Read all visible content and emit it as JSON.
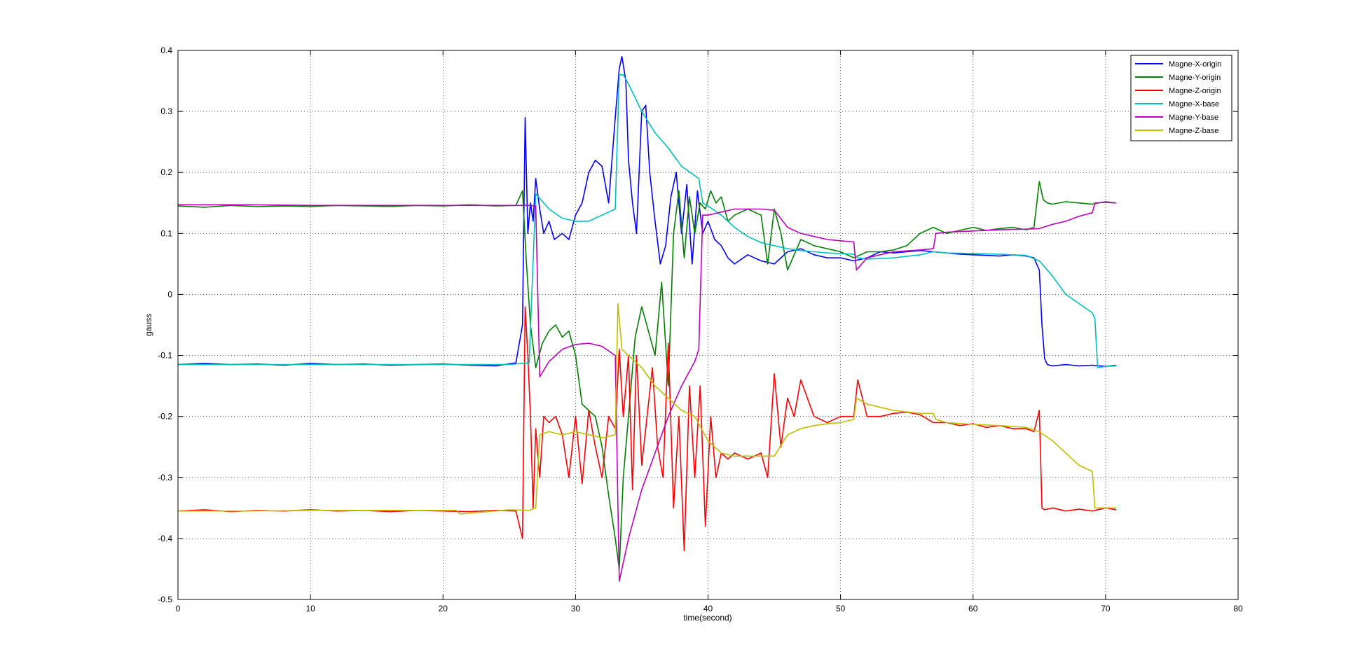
{
  "chart_data": {
    "type": "line",
    "title": "",
    "xlabel": "time(second)",
    "ylabel": "gauss",
    "xlim": [
      0,
      80
    ],
    "ylim": [
      -0.5,
      0.4
    ],
    "xticks": [
      0,
      10,
      20,
      30,
      40,
      50,
      60,
      70,
      80
    ],
    "xtick_labels": [
      "0",
      "10",
      "20",
      "30",
      "40",
      "50",
      "60",
      "70",
      "80"
    ],
    "yticks": [
      -0.5,
      -0.4,
      -0.3,
      -0.2,
      -0.1,
      0,
      0.1,
      0.2,
      0.3,
      0.4
    ],
    "ytick_labels": [
      "-0.5",
      "-0.4",
      "-0.3",
      "-0.2",
      "-0.1",
      "0",
      "0.1",
      "0.2",
      "0.3",
      "0.4"
    ],
    "grid": true,
    "legend_position": "top-right",
    "series": [
      {
        "name": "Magne-X-origin",
        "color": "#0000ff",
        "x": [
          0,
          2,
          4,
          6,
          8,
          10,
          12,
          14,
          16,
          18,
          20,
          22,
          24,
          25.5,
          26,
          26.2,
          26.4,
          26.6,
          26.8,
          27,
          27.3,
          27.6,
          28,
          28.4,
          29,
          29.5,
          30,
          30.5,
          31,
          31.5,
          32,
          32.5,
          33,
          33.3,
          33.5,
          33.8,
          34,
          34.3,
          34.6,
          35,
          35.3,
          35.6,
          36,
          36.4,
          36.8,
          37.2,
          37.6,
          38,
          38.4,
          38.8,
          39.2,
          39.6,
          40,
          40.5,
          41,
          41.5,
          42,
          43,
          44,
          45,
          46,
          47,
          48,
          49,
          50,
          51,
          52,
          53,
          54,
          55,
          56,
          57,
          58,
          59,
          60,
          61,
          62,
          63,
          64,
          64.6,
          65,
          65.2,
          65.4,
          65.6,
          66,
          67,
          68,
          69,
          70,
          70.8
        ],
        "values": [
          -0.115,
          -0.113,
          -0.115,
          -0.114,
          -0.116,
          -0.113,
          -0.115,
          -0.114,
          -0.116,
          -0.115,
          -0.114,
          -0.116,
          -0.117,
          -0.112,
          -0.05,
          0.29,
          0.1,
          0.15,
          0.12,
          0.19,
          0.14,
          0.1,
          0.12,
          0.09,
          0.1,
          0.09,
          0.13,
          0.15,
          0.2,
          0.22,
          0.21,
          0.15,
          0.29,
          0.37,
          0.39,
          0.35,
          0.22,
          0.15,
          0.1,
          0.3,
          0.31,
          0.2,
          0.12,
          0.05,
          0.08,
          0.16,
          0.2,
          0.1,
          0.18,
          0.05,
          0.17,
          0.1,
          0.12,
          0.09,
          0.08,
          0.06,
          0.05,
          0.065,
          0.055,
          0.05,
          0.07,
          0.075,
          0.065,
          0.06,
          0.06,
          0.055,
          0.06,
          0.07,
          0.068,
          0.07,
          0.072,
          0.07,
          0.068,
          0.066,
          0.065,
          0.064,
          0.063,
          0.065,
          0.063,
          0.06,
          0.04,
          -0.05,
          -0.105,
          -0.115,
          -0.117,
          -0.115,
          -0.117,
          -0.116,
          -0.118,
          -0.116
        ]
      },
      {
        "name": "Magne-Y-origin",
        "color": "#008000",
        "x": [
          0,
          2,
          4,
          6,
          8,
          10,
          12,
          14,
          16,
          18,
          20,
          22,
          24,
          25.5,
          26,
          26.3,
          26.6,
          27,
          27.5,
          28,
          28.5,
          29,
          29.5,
          30,
          30.5,
          31,
          31.5,
          32,
          32.5,
          33,
          33.3,
          33.6,
          34,
          34.5,
          35,
          35.5,
          36,
          36.5,
          37,
          37.4,
          37.8,
          38.2,
          38.6,
          39,
          39.4,
          39.8,
          40.2,
          40.6,
          41,
          41.5,
          42,
          43,
          44,
          44.5,
          45,
          45.5,
          46,
          47,
          48,
          49,
          50,
          51,
          52,
          53,
          54,
          55,
          56,
          57,
          58,
          59,
          60,
          61,
          62,
          63,
          64,
          64.6,
          65,
          65.3,
          65.6,
          66,
          67,
          68,
          69,
          70,
          70.8
        ],
        "values": [
          0.145,
          0.143,
          0.146,
          0.144,
          0.145,
          0.144,
          0.146,
          0.145,
          0.144,
          0.146,
          0.145,
          0.147,
          0.145,
          0.146,
          0.17,
          0.05,
          -0.05,
          -0.12,
          -0.08,
          -0.06,
          -0.05,
          -0.07,
          -0.06,
          -0.1,
          -0.18,
          -0.19,
          -0.2,
          -0.25,
          -0.33,
          -0.4,
          -0.45,
          -0.3,
          -0.2,
          -0.07,
          -0.02,
          -0.06,
          -0.1,
          0.02,
          -0.15,
          0.1,
          0.17,
          0.06,
          0.16,
          0.1,
          0.15,
          0.14,
          0.17,
          0.15,
          0.16,
          0.12,
          0.13,
          0.14,
          0.13,
          0.05,
          0.14,
          0.1,
          0.04,
          0.09,
          0.08,
          0.075,
          0.07,
          0.06,
          0.07,
          0.07,
          0.073,
          0.08,
          0.1,
          0.11,
          0.1,
          0.105,
          0.11,
          0.105,
          0.108,
          0.11,
          0.106,
          0.11,
          0.185,
          0.155,
          0.15,
          0.148,
          0.152,
          0.15,
          0.148,
          0.152,
          0.15
        ]
      },
      {
        "name": "Magne-Z-origin",
        "color": "#ff0000",
        "x": [
          0,
          2,
          4,
          6,
          8,
          10,
          12,
          14,
          16,
          18,
          20,
          22,
          24,
          25.5,
          26,
          26.2,
          26.4,
          26.6,
          26.8,
          27,
          27.3,
          27.6,
          28,
          28.5,
          29,
          29.5,
          30,
          30.5,
          31,
          31.5,
          32,
          32.5,
          33,
          33.3,
          33.6,
          34,
          34.3,
          34.6,
          35,
          35.4,
          35.8,
          36.2,
          36.6,
          37,
          37.4,
          37.8,
          38.2,
          38.6,
          39,
          39.4,
          39.8,
          40.2,
          40.6,
          41,
          41.5,
          42,
          43,
          44,
          44.5,
          45,
          45.5,
          46,
          46.5,
          47,
          48,
          49,
          50,
          51,
          51.3,
          52,
          53,
          54,
          55,
          56,
          57,
          58,
          59,
          60,
          61,
          62,
          63,
          64,
          64.6,
          65,
          65.2,
          65.4,
          66,
          67,
          68,
          69,
          70,
          70.8
        ],
        "values": [
          -0.355,
          -0.353,
          -0.356,
          -0.354,
          -0.355,
          -0.353,
          -0.355,
          -0.354,
          -0.356,
          -0.354,
          -0.355,
          -0.356,
          -0.354,
          -0.355,
          -0.4,
          -0.02,
          -0.1,
          -0.2,
          -0.35,
          -0.22,
          -0.3,
          -0.2,
          -0.21,
          -0.2,
          -0.23,
          -0.3,
          -0.2,
          -0.31,
          -0.19,
          -0.25,
          -0.3,
          -0.2,
          -0.22,
          -0.09,
          -0.2,
          -0.1,
          -0.32,
          -0.1,
          -0.28,
          -0.2,
          -0.12,
          -0.25,
          -0.3,
          -0.08,
          -0.35,
          -0.2,
          -0.42,
          -0.15,
          -0.3,
          -0.15,
          -0.38,
          -0.2,
          -0.3,
          -0.26,
          -0.27,
          -0.26,
          -0.27,
          -0.26,
          -0.3,
          -0.13,
          -0.25,
          -0.17,
          -0.2,
          -0.14,
          -0.2,
          -0.21,
          -0.2,
          -0.2,
          -0.14,
          -0.2,
          -0.2,
          -0.195,
          -0.193,
          -0.197,
          -0.21,
          -0.21,
          -0.215,
          -0.212,
          -0.218,
          -0.215,
          -0.22,
          -0.22,
          -0.225,
          -0.19,
          -0.35,
          -0.353,
          -0.35,
          -0.355,
          -0.352,
          -0.355,
          -0.35,
          -0.353
        ]
      },
      {
        "name": "Magne-X-base",
        "color": "#00bfbf",
        "x": [
          0,
          5,
          10,
          15,
          20,
          25,
          26.5,
          27,
          28,
          29,
          30,
          31,
          32,
          33,
          33.3,
          33.6,
          34,
          35,
          36,
          37,
          38,
          39.3,
          39.6,
          40,
          41,
          42,
          43,
          44,
          45,
          46,
          47,
          48,
          49,
          50,
          51,
          51.3,
          52,
          54,
          56,
          57,
          58,
          60,
          62,
          64,
          65,
          66,
          67,
          68,
          69,
          69.2,
          69.4,
          70,
          70.8
        ],
        "values": [
          -0.115,
          -0.115,
          -0.115,
          -0.115,
          -0.115,
          -0.115,
          -0.112,
          0.165,
          0.14,
          0.125,
          0.12,
          0.12,
          0.13,
          0.14,
          0.36,
          0.36,
          0.345,
          0.3,
          0.265,
          0.24,
          0.21,
          0.19,
          0.15,
          0.145,
          0.13,
          0.11,
          0.095,
          0.085,
          0.08,
          0.075,
          0.072,
          0.07,
          0.068,
          0.067,
          0.066,
          0.06,
          0.058,
          0.06,
          0.065,
          0.07,
          0.068,
          0.067,
          0.066,
          0.064,
          0.055,
          0.03,
          0.0,
          -0.015,
          -0.03,
          -0.04,
          -0.12,
          -0.118,
          -0.117
        ]
      },
      {
        "name": "Magne-Y-base",
        "color": "#bf00bf",
        "x": [
          0,
          5,
          10,
          15,
          20,
          25,
          26.5,
          27,
          27.3,
          28,
          29,
          30,
          31,
          32,
          33,
          33.3,
          33.6,
          34,
          35,
          36,
          37,
          38,
          39,
          39.3,
          39.6,
          40,
          41,
          42,
          43,
          44,
          45,
          46,
          47,
          48,
          49,
          50,
          51,
          51.2,
          52,
          54,
          56,
          57,
          57.2,
          58,
          60,
          62,
          64,
          65,
          66,
          67,
          68,
          69,
          69.2,
          70,
          70.8
        ],
        "values": [
          0.147,
          0.147,
          0.146,
          0.146,
          0.146,
          0.146,
          0.146,
          0.145,
          -0.135,
          -0.11,
          -0.09,
          -0.082,
          -0.08,
          -0.085,
          -0.1,
          -0.47,
          -0.44,
          -0.4,
          -0.32,
          -0.26,
          -0.2,
          -0.15,
          -0.11,
          -0.09,
          0.13,
          0.13,
          0.135,
          0.14,
          0.14,
          0.14,
          0.138,
          0.11,
          0.1,
          0.095,
          0.09,
          0.088,
          0.086,
          0.04,
          0.06,
          0.07,
          0.073,
          0.075,
          0.1,
          0.102,
          0.104,
          0.106,
          0.107,
          0.108,
          0.115,
          0.12,
          0.128,
          0.134,
          0.15,
          0.151,
          0.15
        ]
      },
      {
        "name": "Magne-Z-base",
        "color": "#bfbf00",
        "x": [
          0,
          5,
          10,
          15,
          20,
          21,
          21.3,
          25,
          26.5,
          27,
          27.3,
          28,
          29,
          30,
          31,
          32,
          33,
          33.2,
          33.5,
          34,
          35,
          36,
          37,
          38,
          39,
          40,
          41,
          42,
          43,
          44,
          45,
          46,
          47,
          48,
          49,
          50,
          51,
          51.2,
          52,
          54,
          56,
          57,
          57.2,
          58,
          60,
          62,
          64,
          65,
          66,
          67,
          68,
          69,
          69.2,
          70,
          70.8
        ],
        "values": [
          -0.355,
          -0.355,
          -0.354,
          -0.354,
          -0.354,
          -0.354,
          -0.36,
          -0.353,
          -0.354,
          -0.35,
          -0.23,
          -0.225,
          -0.23,
          -0.225,
          -0.23,
          -0.235,
          -0.23,
          -0.015,
          -0.09,
          -0.1,
          -0.12,
          -0.15,
          -0.17,
          -0.19,
          -0.2,
          -0.24,
          -0.26,
          -0.265,
          -0.265,
          -0.265,
          -0.265,
          -0.23,
          -0.22,
          -0.215,
          -0.212,
          -0.21,
          -0.205,
          -0.17,
          -0.18,
          -0.19,
          -0.195,
          -0.195,
          -0.205,
          -0.21,
          -0.213,
          -0.215,
          -0.218,
          -0.225,
          -0.24,
          -0.26,
          -0.28,
          -0.29,
          -0.35,
          -0.35,
          -0.35
        ]
      }
    ]
  }
}
